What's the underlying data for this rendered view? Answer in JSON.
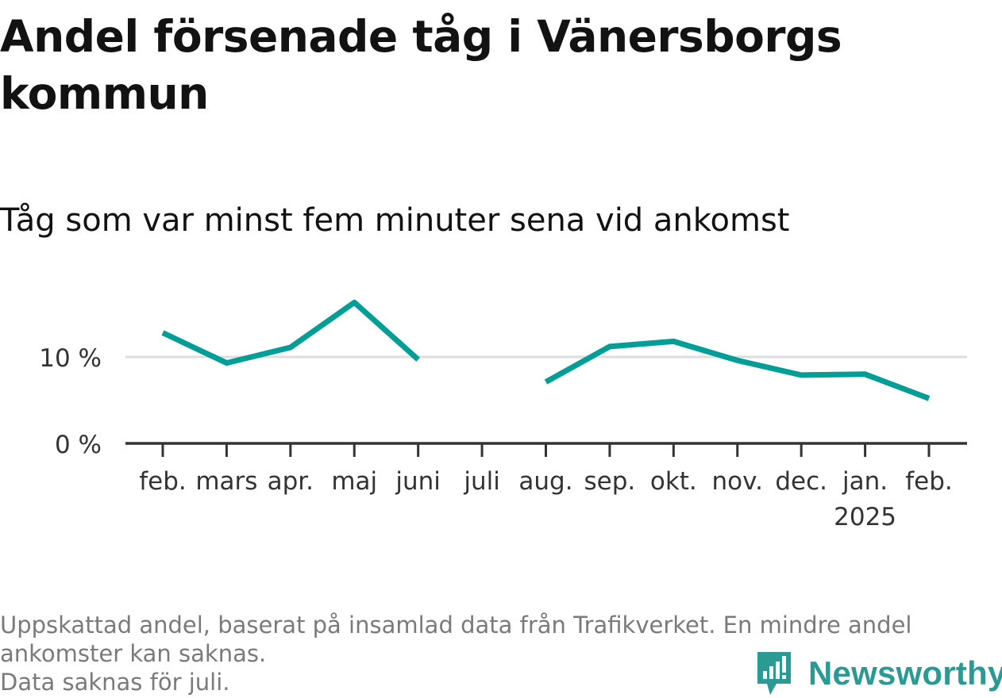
{
  "title": "Andel försenade tåg i Vänersborgs kommun",
  "subtitle": "Tåg som var minst fem minuter sena vid ankomst",
  "chart_data": {
    "type": "line",
    "categories": [
      "feb.",
      "mars",
      "apr.",
      "maj",
      "juni",
      "juli",
      "aug.",
      "sep.",
      "okt.",
      "nov.",
      "dec.",
      "jan.",
      "feb."
    ],
    "category_sublabels": [
      "",
      "",
      "",
      "",
      "",
      "",
      "",
      "",
      "",
      "",
      "",
      "2025",
      ""
    ],
    "series": [
      {
        "values": [
          12.8,
          9.3,
          11.1,
          16.3,
          9.7,
          null,
          7.1,
          11.2,
          11.8,
          9.6,
          7.9,
          8.0,
          5.2
        ]
      }
    ],
    "yticks": [
      0,
      10
    ],
    "ytick_labels": [
      "0 %",
      "10 %"
    ],
    "ylim": [
      0,
      17
    ],
    "grid": true,
    "legend": "none",
    "line_color": "#009e96"
  },
  "footnote": {
    "line1": "Uppskattad andel, baserat på insamlad data från Trafikverket. En mindre andel ankomster kan saknas.",
    "line2": "Data saknas för juli."
  },
  "logo": {
    "text": "Newsworthy",
    "color": "#2c9a94"
  }
}
